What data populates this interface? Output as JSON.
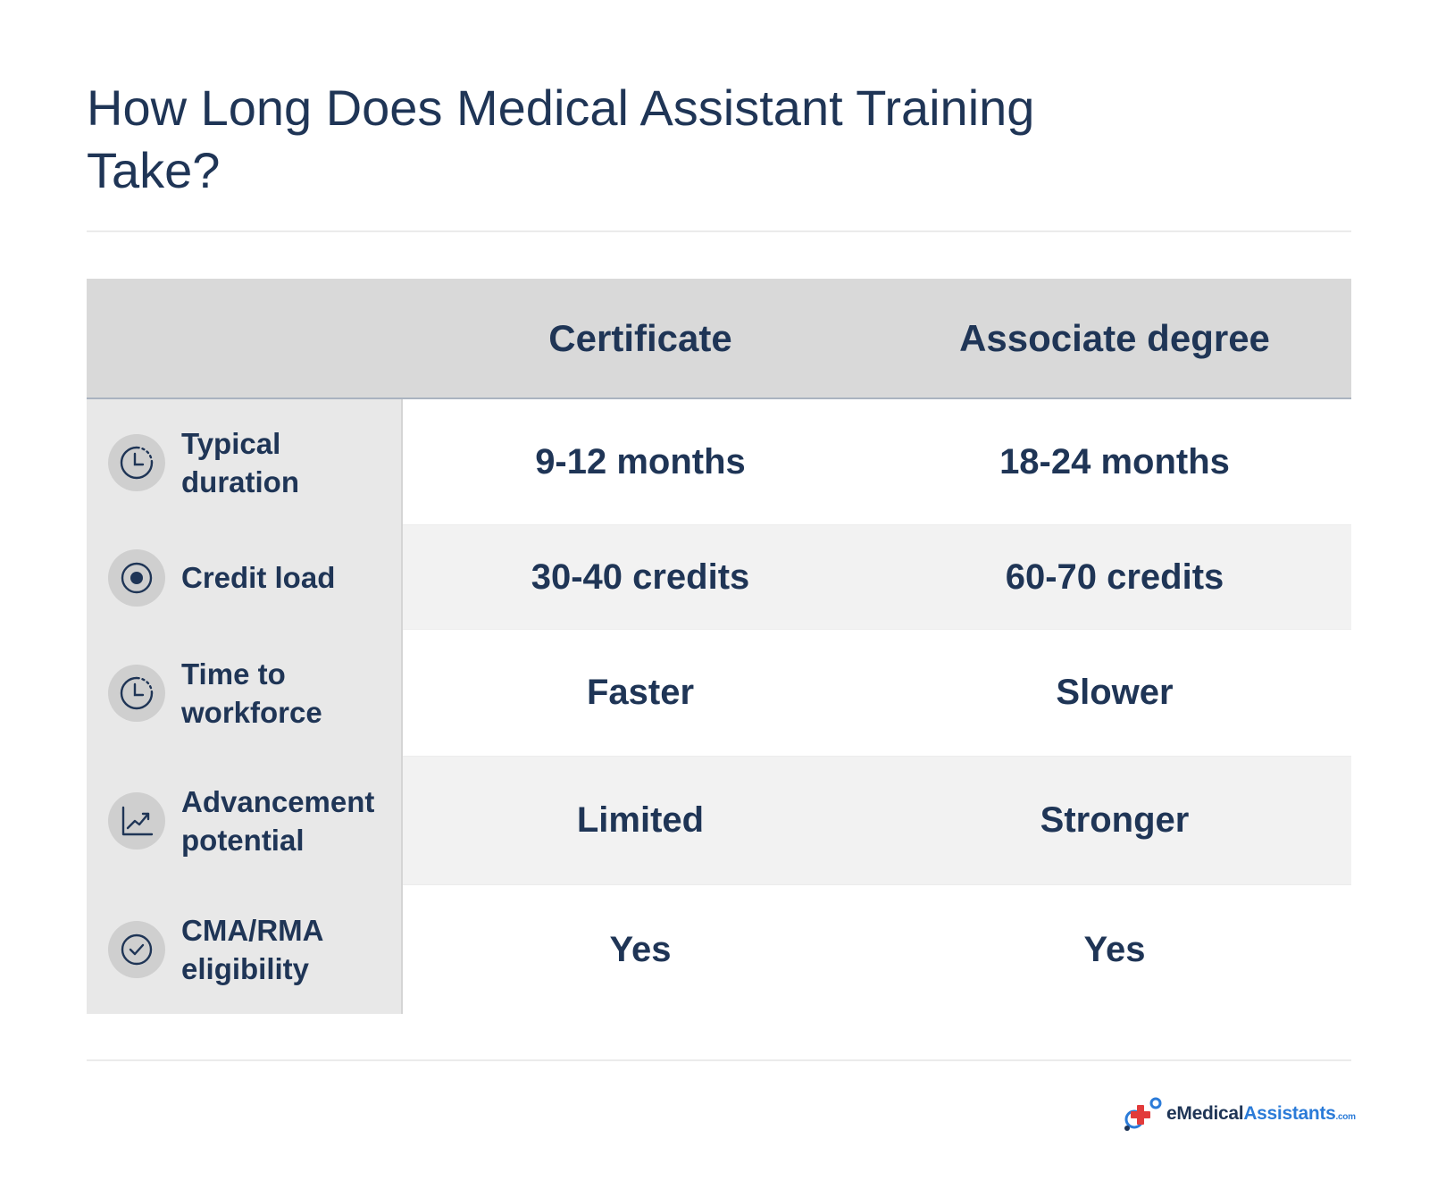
{
  "title": "How Long Does Medical Assistant Training Take?",
  "table": {
    "columns": [
      "Certificate",
      "Associate degree"
    ],
    "rows": [
      {
        "icon": "clock-icon",
        "label": "Typical duration",
        "certificate": "9-12 months",
        "associate": "18-24 months"
      },
      {
        "icon": "target-icon",
        "label": "Credit load",
        "certificate": "30-40 credits",
        "associate": "60-70 credits"
      },
      {
        "icon": "clock-icon",
        "label": "Time to workforce",
        "certificate": "Faster",
        "associate": "Slower"
      },
      {
        "icon": "trend-up-chart-icon",
        "label": "Advancement potential",
        "certificate": "Limited",
        "associate": "Stronger"
      },
      {
        "icon": "check-circle-icon",
        "label": "CMA/RMA eligibility",
        "certificate": "Yes",
        "associate": "Yes"
      }
    ]
  },
  "logo": {
    "name_part1": "eMedical",
    "name_part2": "Assistants",
    "domain": ".com"
  },
  "colors": {
    "text": "#1f3556",
    "header_bg": "#d9d9d9",
    "label_bg": "#e8e8e8",
    "alt_row_bg": "#f2f2f2",
    "logo_red": "#e23b3b",
    "logo_blue": "#2b7bd8"
  }
}
